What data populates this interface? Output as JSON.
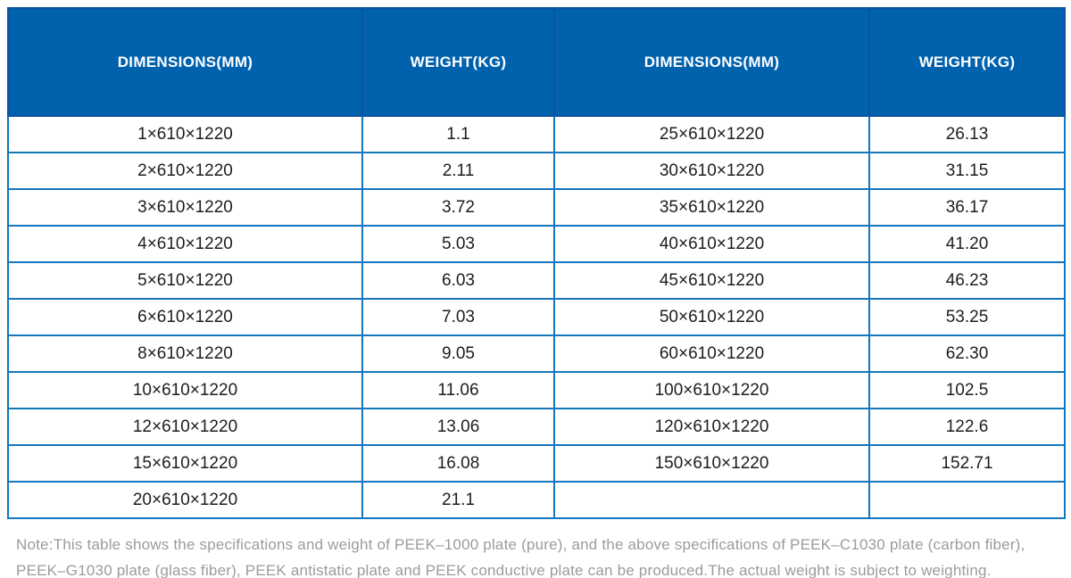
{
  "table": {
    "columns": [
      {
        "label": "DIMENSIONS(MM)"
      },
      {
        "label": "WEIGHT(KG)"
      },
      {
        "label": "DIMENSIONS(MM)"
      },
      {
        "label": "WEIGHT(KG)"
      }
    ],
    "rows": [
      [
        "1×610×1220",
        "1.1",
        "25×610×1220",
        "26.13"
      ],
      [
        "2×610×1220",
        "2.11",
        "30×610×1220",
        "31.15"
      ],
      [
        "3×610×1220",
        "3.72",
        "35×610×1220",
        "36.17"
      ],
      [
        "4×610×1220",
        "5.03",
        "40×610×1220",
        "41.20"
      ],
      [
        "5×610×1220",
        "6.03",
        "45×610×1220",
        "46.23"
      ],
      [
        "6×610×1220",
        "7.03",
        "50×610×1220",
        "53.25"
      ],
      [
        "8×610×1220",
        "9.05",
        "60×610×1220",
        "62.30"
      ],
      [
        "10×610×1220",
        "11.06",
        "100×610×1220",
        "102.5"
      ],
      [
        "12×610×1220",
        "13.06",
        "120×610×1220",
        "122.6"
      ],
      [
        "15×610×1220",
        "16.08",
        "150×610×1220",
        "152.71"
      ],
      [
        "20×610×1220",
        "21.1",
        "",
        ""
      ]
    ]
  },
  "note": "Note:This table shows the specifications and weight of PEEK–1000 plate (pure), and the above specifications of PEEK–C1030 plate (carbon fiber), PEEK–G1030 plate (glass fiber), PEEK antistatic plate and PEEK conductive plate can be produced.The actual weight is subject to weighting.",
  "colors": {
    "header_background": "#0061AD",
    "header_text": "#FFFFFF",
    "header_divider": "#0A53A0",
    "body_border": "#1377BE",
    "body_text": "#1D1D1D",
    "note_text": "#9B9B9B"
  }
}
